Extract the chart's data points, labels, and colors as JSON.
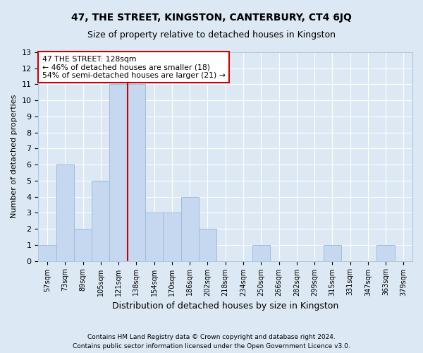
{
  "title1": "47, THE STREET, KINGSTON, CANTERBURY, CT4 6JQ",
  "title2": "Size of property relative to detached houses in Kingston",
  "xlabel": "Distribution of detached houses by size in Kingston",
  "ylabel": "Number of detached properties",
  "categories": [
    "57sqm",
    "73sqm",
    "89sqm",
    "105sqm",
    "121sqm",
    "138sqm",
    "154sqm",
    "170sqm",
    "186sqm",
    "202sqm",
    "218sqm",
    "234sqm",
    "250sqm",
    "266sqm",
    "282sqm",
    "299sqm",
    "315sqm",
    "331sqm",
    "347sqm",
    "363sqm",
    "379sqm"
  ],
  "values": [
    1,
    6,
    2,
    5,
    11,
    11,
    3,
    3,
    4,
    2,
    0,
    0,
    1,
    0,
    0,
    0,
    1,
    0,
    0,
    1,
    0
  ],
  "bar_color": "#c5d8f0",
  "bar_edge_color": "#a0bcd8",
  "vline_x_index": 4,
  "vline_color": "#cc0000",
  "annotation_text": "47 THE STREET: 128sqm\n← 46% of detached houses are smaller (18)\n54% of semi-detached houses are larger (21) →",
  "annotation_box_edgecolor": "#cc0000",
  "annotation_box_facecolor": "#ffffff",
  "ylim": [
    0,
    13
  ],
  "yticks": [
    0,
    1,
    2,
    3,
    4,
    5,
    6,
    7,
    8,
    9,
    10,
    11,
    12,
    13
  ],
  "footer1": "Contains HM Land Registry data © Crown copyright and database right 2024.",
  "footer2": "Contains public sector information licensed under the Open Government Licence v3.0.",
  "bg_color": "#dce9f5",
  "plot_bg_color": "#dde8f5",
  "grid_color": "#ffffff",
  "title1_fontsize": 10,
  "title2_fontsize": 9,
  "ylabel_fontsize": 8,
  "xlabel_fontsize": 9
}
